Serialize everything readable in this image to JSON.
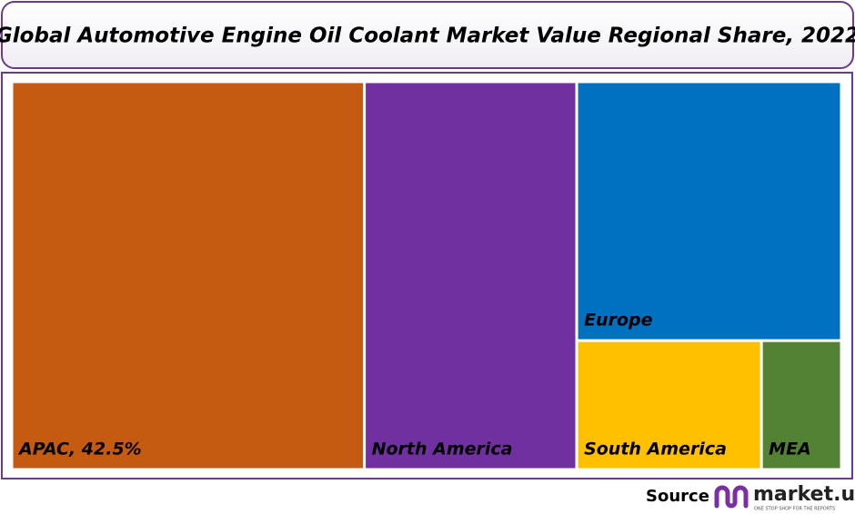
{
  "chart_data": {
    "type": "treemap",
    "title": "Global Automotive Engine Oil Coolant Market Value Regional Share, 2022",
    "categories": [
      "APAC, 42.5%",
      "North America",
      "Europe",
      "South America",
      "MEA"
    ],
    "values": [
      42.5,
      25.6,
      21.3,
      7.4,
      3.2
    ],
    "colors": [
      "#c55a11",
      "#7030a0",
      "#0070c0",
      "#ffc000",
      "#548235"
    ]
  },
  "footer": {
    "source": "Source",
    "brand": "market.us",
    "tagline": "ONE STOP SHOP FOR THE REPORTS"
  }
}
